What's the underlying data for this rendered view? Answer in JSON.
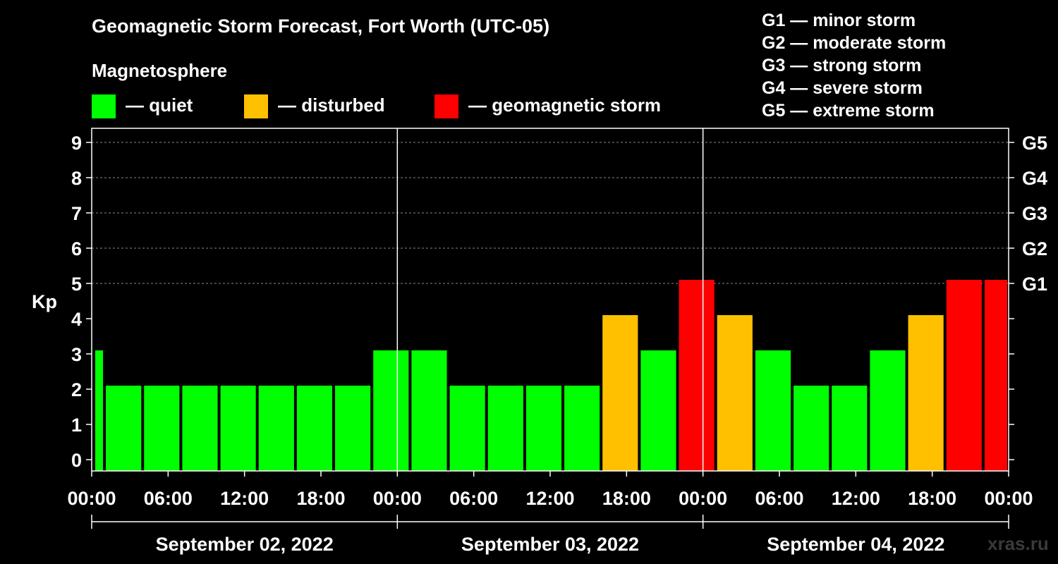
{
  "chart_data": {
    "type": "bar",
    "title": "Geomagnetic Storm Forecast, Fort Worth (UTC-05)",
    "subtitle": "Magnetosphere",
    "ylabel": "Kp",
    "ylim": [
      0,
      9
    ],
    "y_ticks": [
      "0",
      "1",
      "2",
      "3",
      "4",
      "5",
      "6",
      "7",
      "8",
      "9"
    ],
    "right_ticks": [
      {
        "kp": 5,
        "label": "G1"
      },
      {
        "kp": 6,
        "label": "G2"
      },
      {
        "kp": 7,
        "label": "G3"
      },
      {
        "kp": 8,
        "label": "G4"
      },
      {
        "kp": 9,
        "label": "G5"
      }
    ],
    "x_hours": [
      0,
      72
    ],
    "x_ticks": [
      {
        "hour": 0,
        "label": "00:00"
      },
      {
        "hour": 6,
        "label": "06:00"
      },
      {
        "hour": 12,
        "label": "12:00"
      },
      {
        "hour": 18,
        "label": "18:00"
      },
      {
        "hour": 24,
        "label": "00:00"
      },
      {
        "hour": 30,
        "label": "06:00"
      },
      {
        "hour": 36,
        "label": "12:00"
      },
      {
        "hour": 42,
        "label": "18:00"
      },
      {
        "hour": 48,
        "label": "00:00"
      },
      {
        "hour": 54,
        "label": "06:00"
      },
      {
        "hour": 60,
        "label": "12:00"
      },
      {
        "hour": 66,
        "label": "18:00"
      },
      {
        "hour": 72,
        "label": "00:00"
      }
    ],
    "dates": [
      {
        "start": 0,
        "end": 24,
        "label": "September 02, 2022"
      },
      {
        "start": 24,
        "end": 48,
        "label": "September 03, 2022"
      },
      {
        "start": 48,
        "end": 72,
        "label": "September 04, 2022"
      }
    ],
    "grid": true,
    "legend": [
      {
        "label": "— quiet",
        "color": "#00ff00"
      },
      {
        "label": "— disturbed",
        "color": "#ffc000"
      },
      {
        "label": "— geomagnetic storm",
        "color": "#ff0000"
      }
    ],
    "storm_levels": [
      "G1 — minor storm",
      "G2 — moderate storm",
      "G3 — strong storm",
      "G4 — severe storm",
      "G5 — extreme storm"
    ],
    "bars": [
      {
        "start": 0,
        "end": 1,
        "kp": 3,
        "status": "quiet"
      },
      {
        "start": 1,
        "end": 4,
        "kp": 2,
        "status": "quiet"
      },
      {
        "start": 4,
        "end": 7,
        "kp": 2,
        "status": "quiet"
      },
      {
        "start": 7,
        "end": 10,
        "kp": 2,
        "status": "quiet"
      },
      {
        "start": 10,
        "end": 13,
        "kp": 2,
        "status": "quiet"
      },
      {
        "start": 13,
        "end": 16,
        "kp": 2,
        "status": "quiet"
      },
      {
        "start": 16,
        "end": 19,
        "kp": 2,
        "status": "quiet"
      },
      {
        "start": 19,
        "end": 22,
        "kp": 2,
        "status": "quiet"
      },
      {
        "start": 22,
        "end": 25,
        "kp": 3,
        "status": "quiet"
      },
      {
        "start": 25,
        "end": 28,
        "kp": 3,
        "status": "quiet"
      },
      {
        "start": 28,
        "end": 31,
        "kp": 2,
        "status": "quiet"
      },
      {
        "start": 31,
        "end": 34,
        "kp": 2,
        "status": "quiet"
      },
      {
        "start": 34,
        "end": 37,
        "kp": 2,
        "status": "quiet"
      },
      {
        "start": 37,
        "end": 40,
        "kp": 2,
        "status": "quiet"
      },
      {
        "start": 40,
        "end": 43,
        "kp": 4,
        "status": "disturbed"
      },
      {
        "start": 43,
        "end": 46,
        "kp": 3,
        "status": "quiet"
      },
      {
        "start": 46,
        "end": 49,
        "kp": 5,
        "status": "storm"
      },
      {
        "start": 49,
        "end": 52,
        "kp": 4,
        "status": "disturbed"
      },
      {
        "start": 52,
        "end": 55,
        "kp": 3,
        "status": "quiet"
      },
      {
        "start": 55,
        "end": 58,
        "kp": 2,
        "status": "quiet"
      },
      {
        "start": 58,
        "end": 61,
        "kp": 2,
        "status": "quiet"
      },
      {
        "start": 61,
        "end": 64,
        "kp": 3,
        "status": "quiet"
      },
      {
        "start": 64,
        "end": 67,
        "kp": 4,
        "status": "disturbed"
      },
      {
        "start": 67,
        "end": 70,
        "kp": 5,
        "status": "storm"
      },
      {
        "start": 70,
        "end": 72,
        "kp": 5,
        "status": "storm"
      }
    ],
    "colors": {
      "quiet": "#00ff00",
      "disturbed": "#ffc000",
      "storm": "#ff0000"
    }
  },
  "watermark": "xras.ru"
}
